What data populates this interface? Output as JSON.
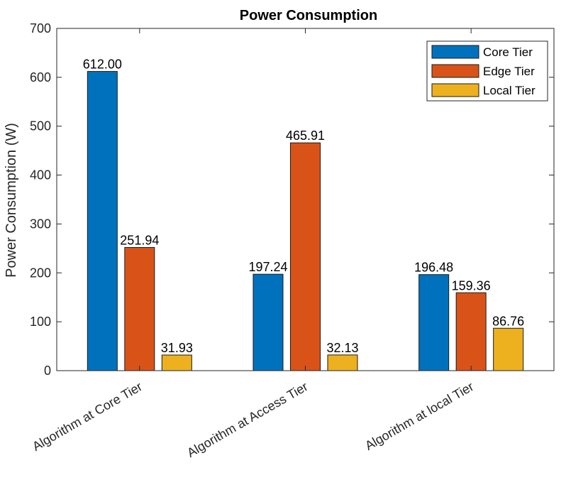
{
  "chart_data": {
    "type": "bar",
    "title": "Power Consumption",
    "xlabel": "",
    "ylabel": "Power Consumption (W)",
    "ylim": [
      0,
      700
    ],
    "yticks": [
      0,
      100,
      200,
      300,
      400,
      500,
      600,
      700
    ],
    "categories": [
      "Algorithm at Core Tier",
      "Algorithm at Access Tier",
      "Algorithm at local Tier"
    ],
    "series": [
      {
        "name": "Core Tier",
        "color": "#0072BD",
        "values": [
          612.0,
          197.24,
          196.48
        ],
        "labels": [
          "612.00",
          "197.24",
          "196.48"
        ]
      },
      {
        "name": "Edge Tier",
        "color": "#D95319",
        "values": [
          251.94,
          465.91,
          159.36
        ],
        "labels": [
          "251.94",
          "465.91",
          "159.36"
        ]
      },
      {
        "name": "Local Tier",
        "color": "#EDB120",
        "values": [
          31.93,
          32.13,
          86.76
        ],
        "labels": [
          "31.93",
          "32.13",
          "86.76"
        ]
      }
    ],
    "legend_position": "top-right",
    "grid": false
  }
}
